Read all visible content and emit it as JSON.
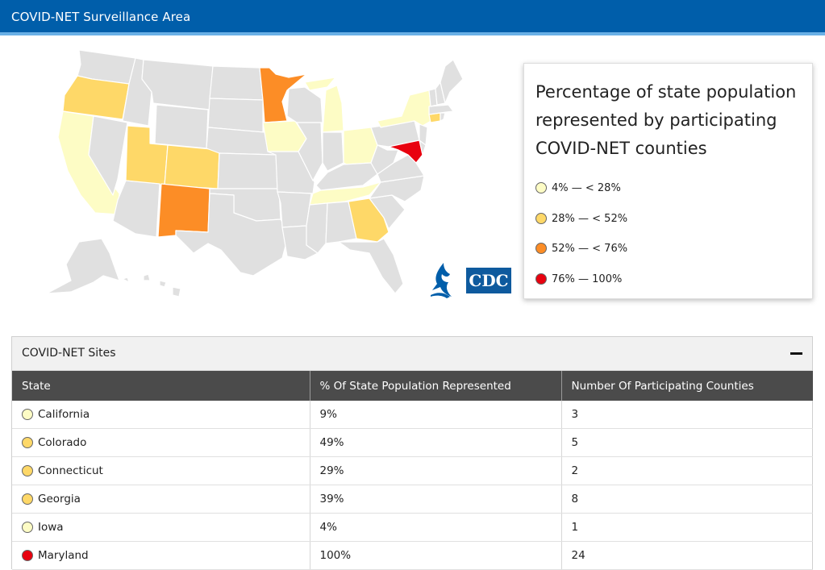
{
  "header": {
    "title": "COVID-NET Surveillance Area"
  },
  "legend": {
    "title": "Percentage of state population represented by participating COVID-NET counties",
    "items": [
      {
        "label": "4% — < 28%",
        "color": "#fdfcc5"
      },
      {
        "label": "28% — < 52%",
        "color": "#fed868"
      },
      {
        "label": "52% — < 76%",
        "color": "#fc8d26"
      },
      {
        "label": "76% — 100%",
        "color": "#e8020f"
      }
    ]
  },
  "map": {
    "default_color": "#e0e0e0",
    "highlighted_states": {
      "CA": "#fdfcc5",
      "OR": "#fed868",
      "UT": "#fed868",
      "CO": "#fed868",
      "NM": "#fc8d26",
      "MN": "#fc8d26",
      "IA": "#fdfcc5",
      "MI": "#fdfcc5",
      "OH": "#fdfcc5",
      "TN": "#fdfcc5",
      "GA": "#fed868",
      "NY": "#fdfcc5",
      "CT": "#fed868",
      "MD": "#e8020f"
    }
  },
  "logos": {
    "hhs": "hhs-eagle-logo",
    "cdc": "CDC"
  },
  "sites": {
    "title": "COVID-NET Sites",
    "columns": [
      "State",
      "% Of State Population Represented",
      "Number Of Participating Counties"
    ],
    "rows": [
      {
        "state": "California",
        "pct": "9%",
        "counties": "3",
        "color": "#fdfcc5"
      },
      {
        "state": "Colorado",
        "pct": "49%",
        "counties": "5",
        "color": "#fed868"
      },
      {
        "state": "Connecticut",
        "pct": "29%",
        "counties": "2",
        "color": "#fed868"
      },
      {
        "state": "Georgia",
        "pct": "39%",
        "counties": "8",
        "color": "#fed868"
      },
      {
        "state": "Iowa",
        "pct": "4%",
        "counties": "1",
        "color": "#fdfcc5"
      },
      {
        "state": "Maryland",
        "pct": "100%",
        "counties": "24",
        "color": "#e8020f"
      }
    ]
  }
}
